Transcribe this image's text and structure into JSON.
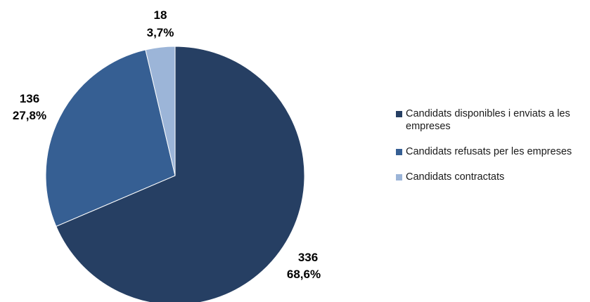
{
  "chart_data": {
    "type": "pie",
    "title": "",
    "start_angle_deg": 0,
    "direction": "clockwise",
    "legend_position": "right",
    "slices": [
      {
        "name": "Candidats disponibles i enviats a les empreses",
        "value": 336,
        "percent_label": "68,6%",
        "color": "#263f63"
      },
      {
        "name": "Candidats refusats per les empreses",
        "value": 136,
        "percent_label": "27,8%",
        "color": "#365f93"
      },
      {
        "name": "Candidats contractats",
        "value": 18,
        "percent_label": "3,7%",
        "color": "#9cb5d8"
      }
    ]
  }
}
